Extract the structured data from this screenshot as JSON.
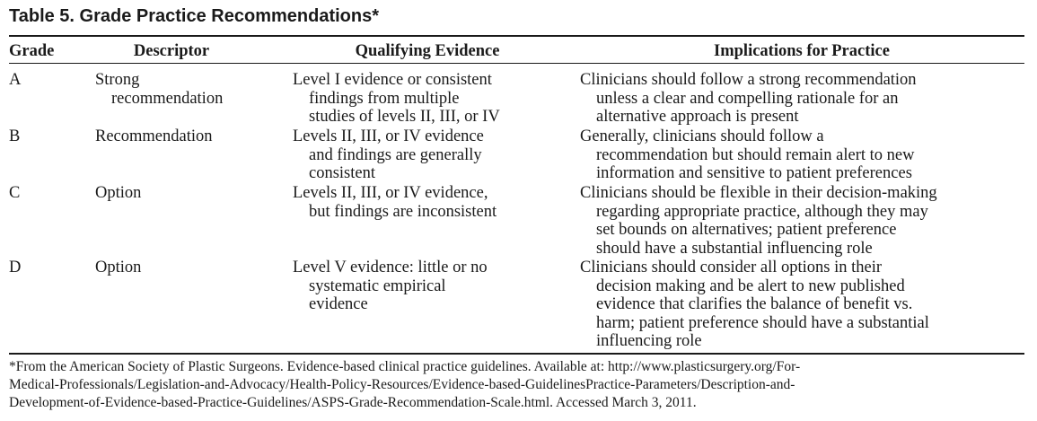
{
  "table": {
    "title": "Table 5.  Grade Practice Recommendations*",
    "headers": {
      "grade": "Grade",
      "descriptor": "Descriptor",
      "evidence": "Qualifying Evidence",
      "implications": "Implications for Practice"
    },
    "rows": [
      {
        "grade": "A",
        "descriptor": [
          "Strong",
          "recommendation"
        ],
        "evidence": [
          "Level I evidence or consistent",
          "findings from multiple",
          "studies of levels II, III, or IV"
        ],
        "implications": [
          "Clinicians should follow a strong recommendation",
          "unless a clear and compelling rationale for an",
          "alternative approach is present"
        ]
      },
      {
        "grade": "B",
        "descriptor": [
          "Recommendation"
        ],
        "evidence": [
          "Levels II, III, or IV evidence",
          "and findings are generally",
          "consistent"
        ],
        "implications": [
          "Generally, clinicians should follow a",
          "recommendation but should remain alert to new",
          "information and sensitive to patient preferences"
        ]
      },
      {
        "grade": "C",
        "descriptor": [
          "Option"
        ],
        "evidence": [
          "Levels II, III, or IV evidence,",
          "but findings are inconsistent"
        ],
        "implications": [
          "Clinicians should be flexible in their decision-making",
          "regarding appropriate practice, although they may",
          "set bounds on alternatives; patient preference",
          "should have a substantial influencing role"
        ]
      },
      {
        "grade": "D",
        "descriptor": [
          "Option"
        ],
        "evidence": [
          "Level V evidence: little or no",
          "systematic empirical",
          "evidence"
        ],
        "implications": [
          "Clinicians should consider all options in their",
          "decision making and be alert to new published",
          "evidence that clarifies the balance of benefit vs.",
          "harm; patient preference should have a substantial",
          "influencing role"
        ]
      }
    ],
    "footnote": [
      "*From the American Society of Plastic Surgeons. Evidence-based clinical practice guidelines. Available at: http://www.plasticsurgery.org/For-",
      "Medical-Professionals/Legislation-and-Advocacy/Health-Policy-Resources/Evidence-based-GuidelinesPractice-Parameters/Description-and-",
      "Development-of-Evidence-based-Practice-Guidelines/ASPS-Grade-Recommendation-Scale.html. Accessed March 3, 2011."
    ]
  }
}
